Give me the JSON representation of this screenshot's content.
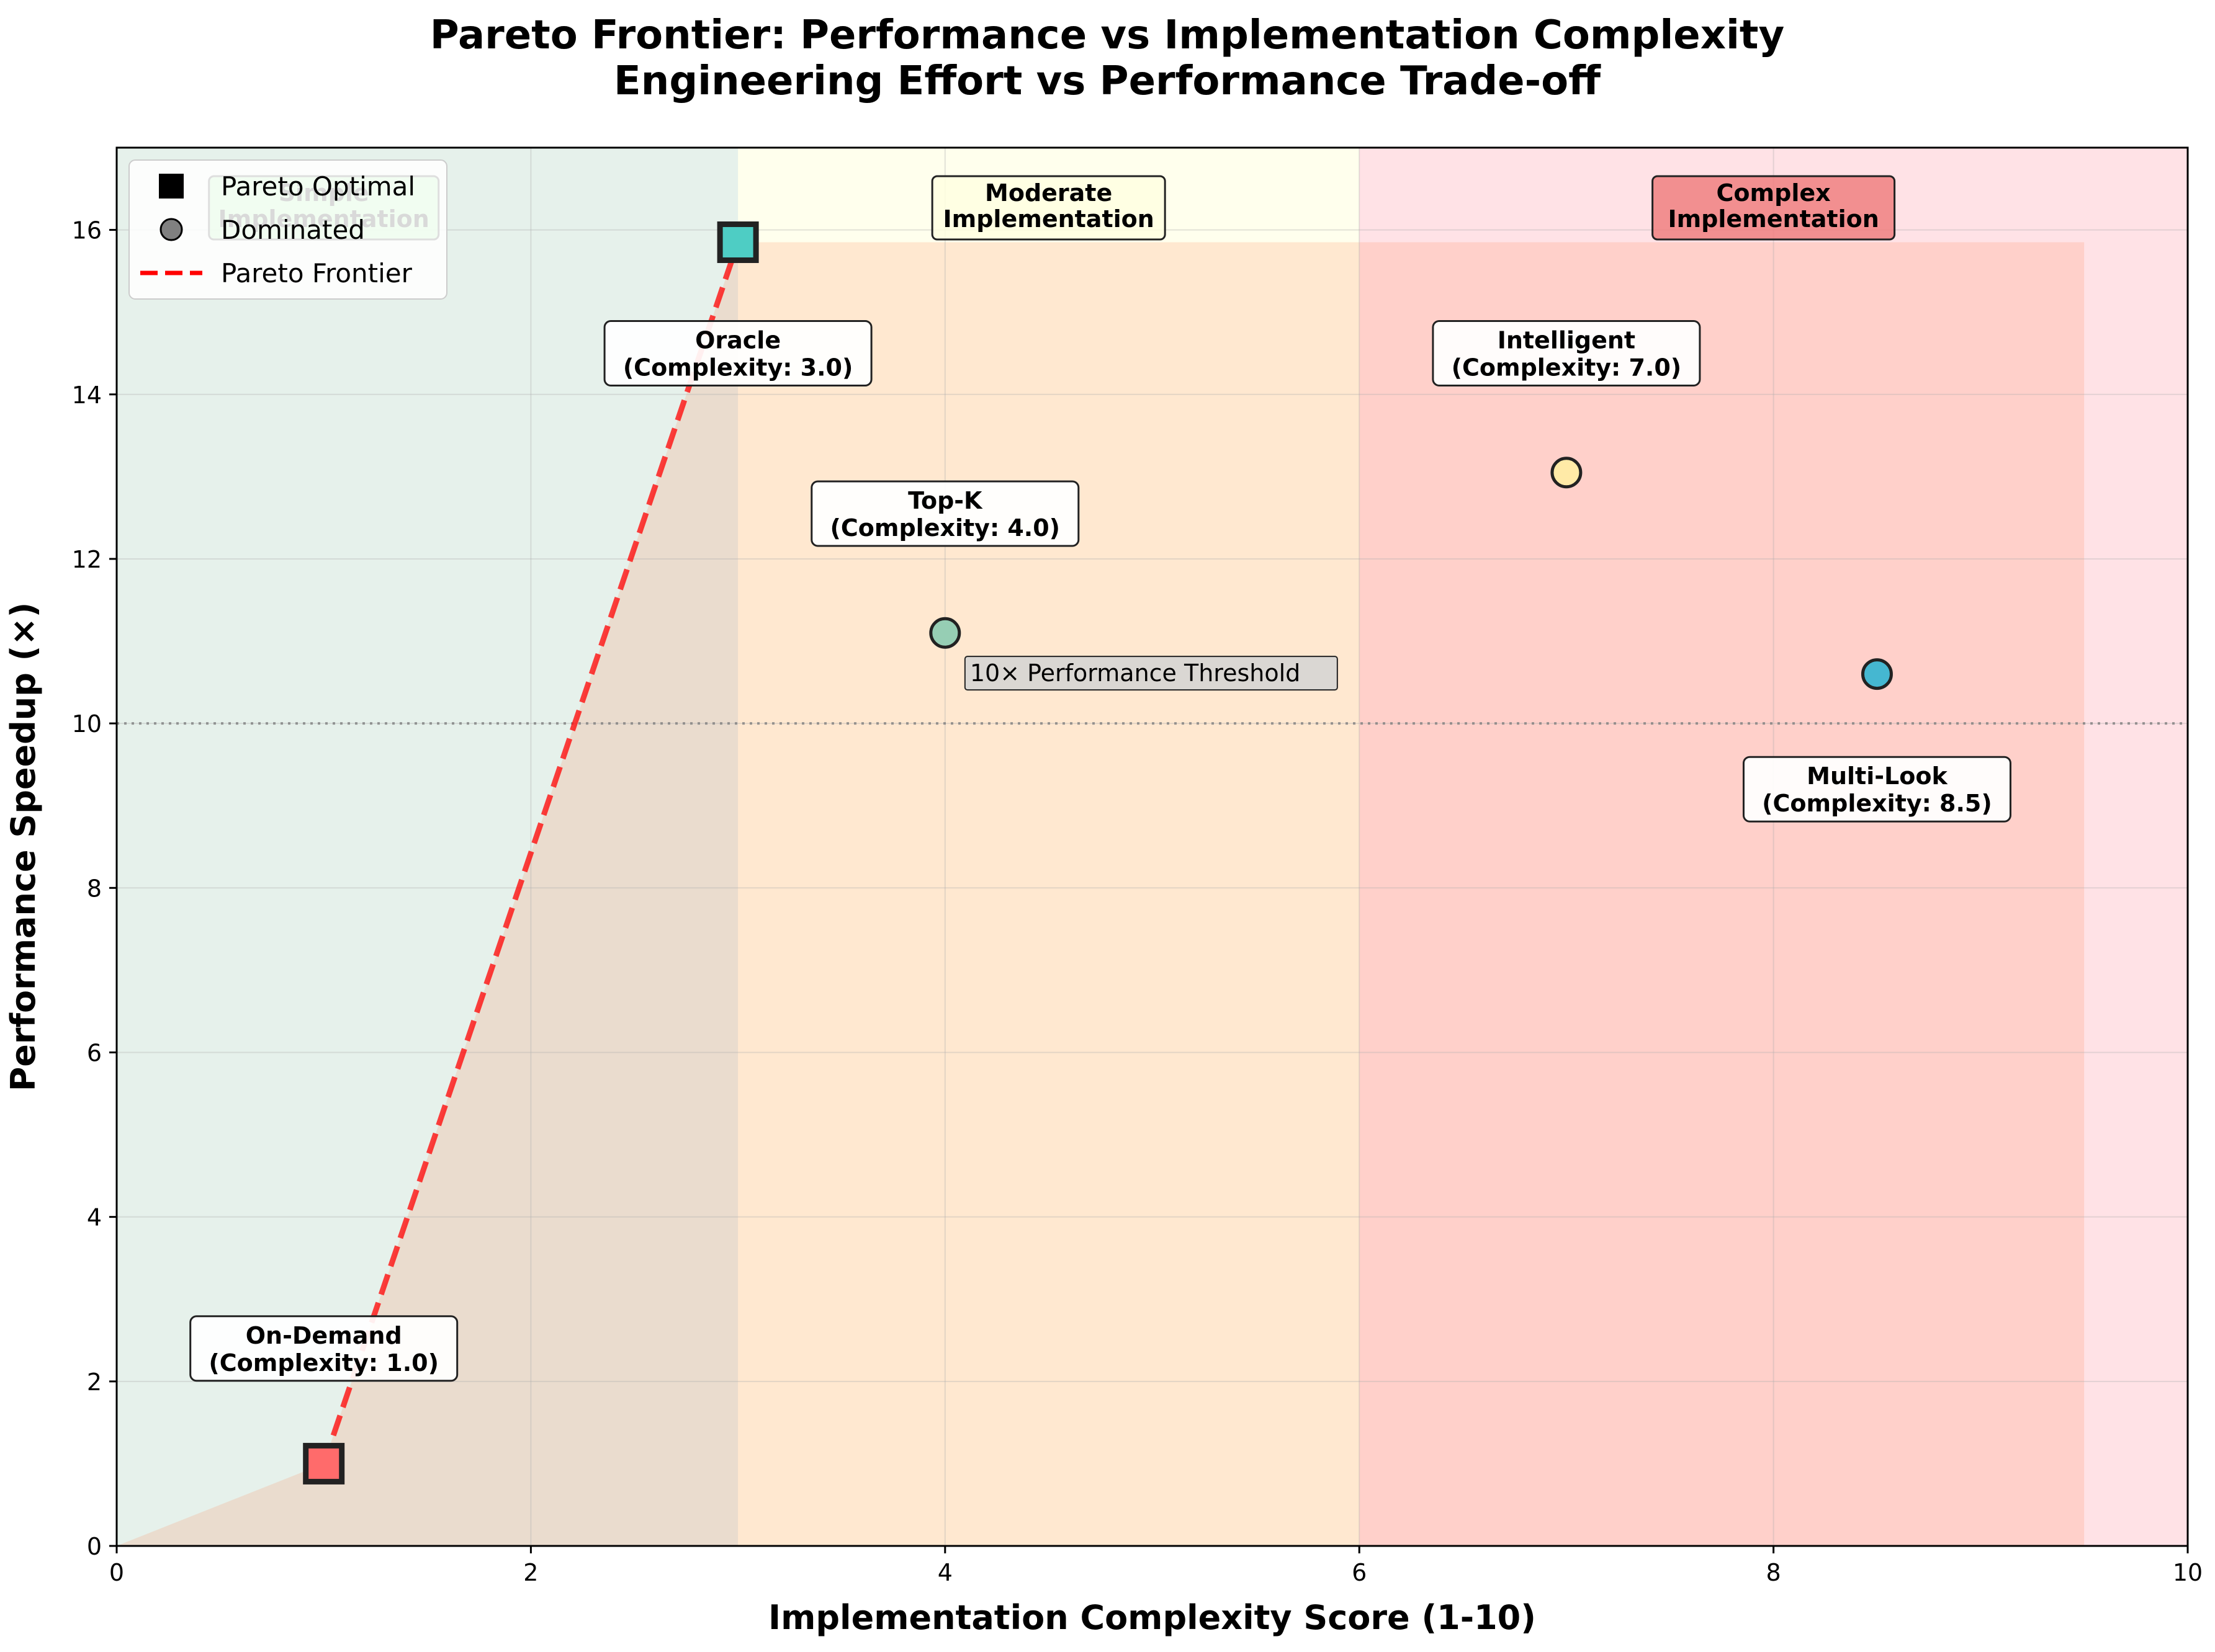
{
  "chart_data": {
    "type": "scatter",
    "title": "Pareto Frontier: Performance vs Implementation Complexity",
    "subtitle": "Engineering Effort vs Performance Trade-off",
    "xlabel": "Implementation Complexity Score (1-10)",
    "ylabel": "Performance Speedup (×)",
    "xlim": [
      0,
      10
    ],
    "ylim": [
      0,
      17
    ],
    "xticks": [
      0,
      2,
      4,
      6,
      8,
      10
    ],
    "yticks": [
      0,
      2,
      4,
      6,
      8,
      10,
      12,
      14,
      16
    ],
    "grid": true,
    "legend_position": "top-left",
    "legend": [
      {
        "label": "Pareto Optimal",
        "marker": "square",
        "color": "#000000"
      },
      {
        "label": "Dominated",
        "marker": "circle",
        "color": "#808080"
      },
      {
        "label": "Pareto Frontier",
        "marker": "dashed-line",
        "color": "#ff0000"
      }
    ],
    "regions": [
      {
        "label": "Simple\nImplementation",
        "x_range": [
          0,
          3
        ],
        "color": "#2e8b57",
        "label_bg": "#90ee90"
      },
      {
        "label": "Moderate\nImplementation",
        "x_range": [
          3,
          6
        ],
        "color": "#ffff99",
        "label_bg": "#ffffe0"
      },
      {
        "label": "Complex\nImplementation",
        "x_range": [
          6,
          10
        ],
        "color": "#ffb6c1",
        "label_bg": "#f08080"
      }
    ],
    "shaded_area": [
      {
        "x": 0,
        "y": 0
      },
      {
        "x": 1.0,
        "y": 1.0
      },
      {
        "x": 3.0,
        "y": 15.85
      },
      {
        "x": 9.5,
        "y": 15.85
      },
      {
        "x": 9.5,
        "y": 0
      }
    ],
    "points": [
      {
        "name": "On-Demand",
        "label": "Complexity: 1.0",
        "x": 1.0,
        "y": 1.0,
        "pareto": true,
        "color": "#ff6b6b"
      },
      {
        "name": "Oracle",
        "label": "Complexity: 3.0",
        "x": 3.0,
        "y": 15.85,
        "pareto": true,
        "color": "#4ecdc4"
      },
      {
        "name": "Top-K",
        "label": "Complexity: 4.0",
        "x": 4.0,
        "y": 11.1,
        "pareto": false,
        "color": "#96ceb4"
      },
      {
        "name": "Intelligent",
        "label": "Complexity: 7.0",
        "x": 7.0,
        "y": 13.05,
        "pareto": false,
        "color": "#ffeaa7"
      },
      {
        "name": "Multi-Look",
        "label": "Complexity: 8.5",
        "x": 8.5,
        "y": 10.6,
        "pareto": false,
        "color": "#45b7d1"
      }
    ],
    "pareto_frontier": [
      {
        "x": 1.0,
        "y": 1.0
      },
      {
        "x": 3.0,
        "y": 15.85
      }
    ],
    "threshold": {
      "y": 10,
      "label": "10× Performance Threshold"
    }
  }
}
